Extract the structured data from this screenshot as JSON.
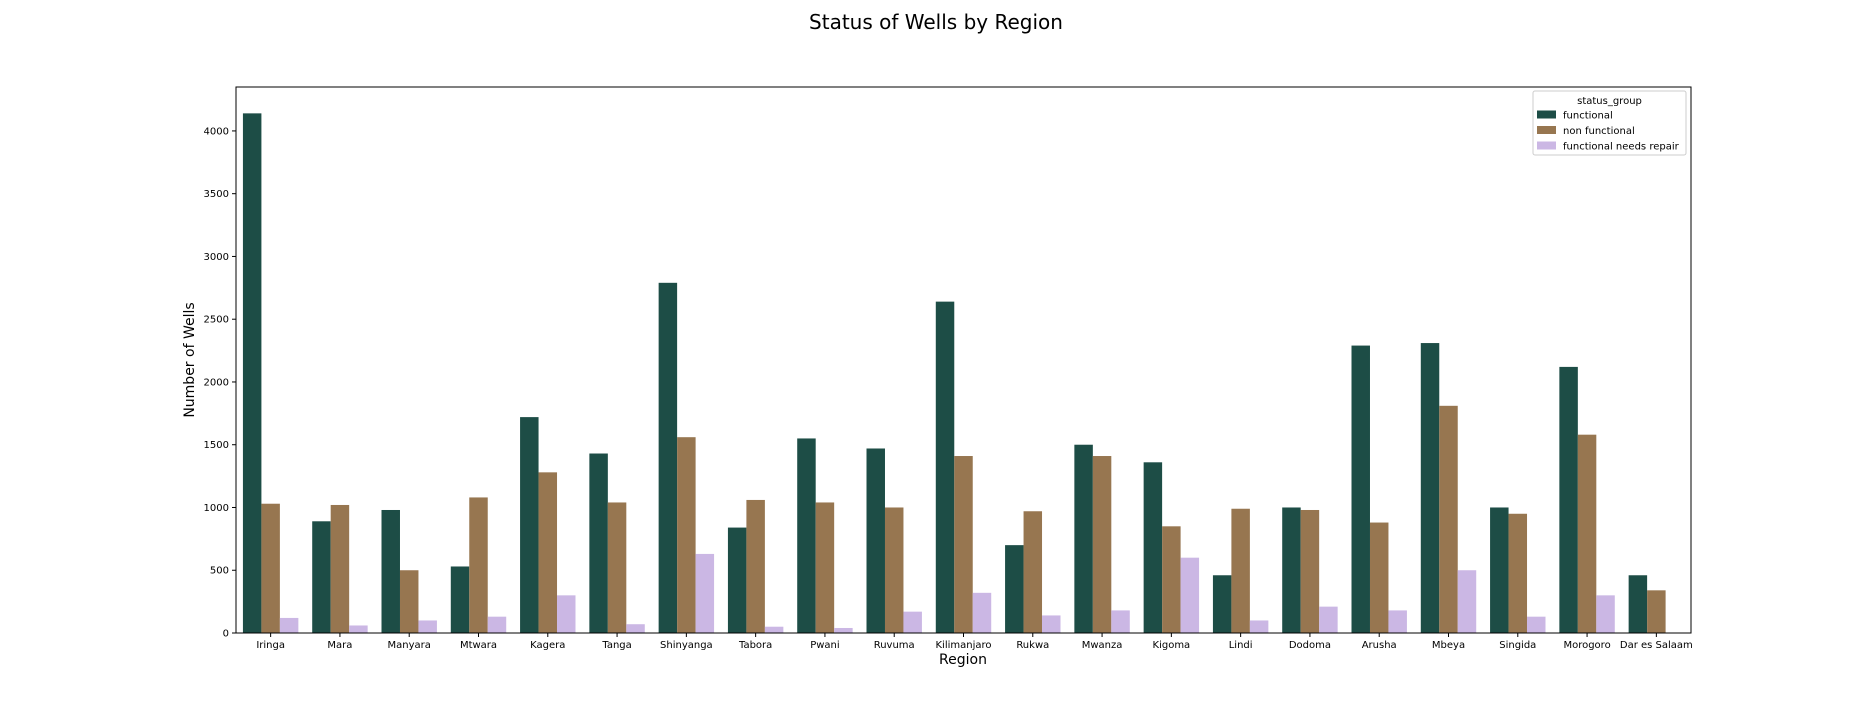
{
  "chart_data": {
    "type": "bar",
    "title": "Status of Wells by Region",
    "xlabel": "Region",
    "ylabel": "Number of Wells",
    "ylim": [
      0,
      4350
    ],
    "yticks": [
      0,
      500,
      1000,
      1500,
      2000,
      2500,
      3000,
      3500,
      4000
    ],
    "grid": false,
    "legend_title": "status_group",
    "legend_position": "top-right",
    "categories": [
      "Iringa",
      "Mara",
      "Manyara",
      "Mtwara",
      "Kagera",
      "Tanga",
      "Shinyanga",
      "Tabora",
      "Pwani",
      "Ruvuma",
      "Kilimanjaro",
      "Rukwa",
      "Mwanza",
      "Kigoma",
      "Lindi",
      "Dodoma",
      "Arusha",
      "Mbeya",
      "Singida",
      "Morogoro",
      "Dar es Salaam"
    ],
    "series": [
      {
        "name": "functional",
        "color": "#1d4d46",
        "values": [
          4140,
          890,
          980,
          530,
          1720,
          1430,
          2790,
          840,
          1550,
          1470,
          2640,
          700,
          1500,
          1360,
          460,
          1000,
          2290,
          2310,
          1000,
          2120,
          460
        ]
      },
      {
        "name": "non functional",
        "color": "#977650",
        "values": [
          1030,
          1020,
          500,
          1080,
          1280,
          1040,
          1560,
          1060,
          1040,
          1000,
          1410,
          970,
          1410,
          850,
          990,
          980,
          880,
          1810,
          950,
          1580,
          340
        ]
      },
      {
        "name": "functional needs repair",
        "color": "#cbb7e4",
        "values": [
          120,
          60,
          100,
          130,
          300,
          70,
          630,
          50,
          40,
          170,
          320,
          140,
          180,
          600,
          100,
          210,
          180,
          500,
          130,
          300,
          0
        ]
      }
    ]
  }
}
